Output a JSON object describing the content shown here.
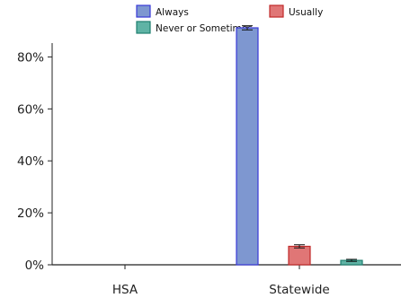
{
  "chart_data": {
    "type": "bar",
    "categories": [
      "HSA",
      "Statewide"
    ],
    "series": [
      {
        "name": "Always",
        "values": [
          null,
          91.2
        ],
        "error": [
          null,
          0.8
        ],
        "color": "#7e97d0",
        "stroke": "#3a3ad8"
      },
      {
        "name": "Usually",
        "values": [
          null,
          7.1
        ],
        "error": [
          null,
          0.6
        ],
        "color": "#e07676",
        "stroke": "#c02a2a"
      },
      {
        "name": "Never or Sometimes",
        "values": [
          null,
          1.7
        ],
        "error": [
          null,
          0.4
        ],
        "color": "#5fb3a5",
        "stroke": "#1f7f70"
      }
    ],
    "ylim": [
      0,
      95
    ],
    "yticks": [
      0,
      20,
      40,
      60,
      80
    ],
    "ytick_labels": [
      "0%",
      "20%",
      "40%",
      "60%",
      "80%"
    ],
    "xlabel": "",
    "ylabel": "",
    "title": "",
    "grid": false,
    "legend_position": "top"
  }
}
